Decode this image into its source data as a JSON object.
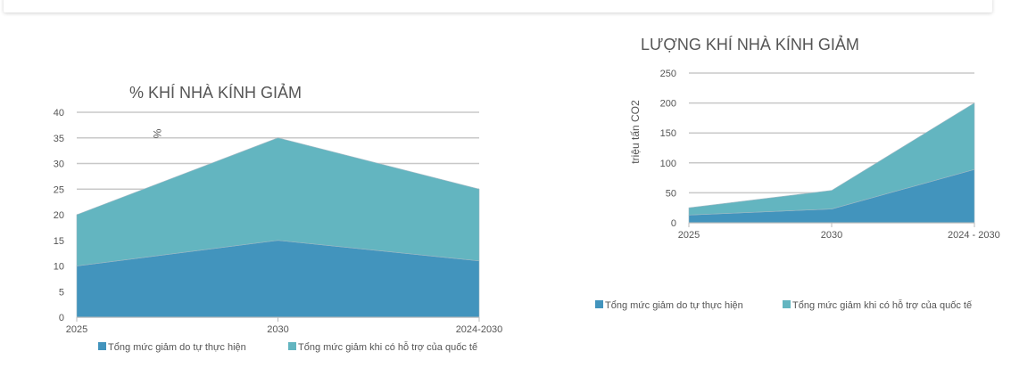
{
  "colors": {
    "series1": "#4294bd",
    "series2": "#63b5c0",
    "grid": "#c8c8c8"
  },
  "chart_data": [
    {
      "type": "area",
      "stacked": true,
      "title": "% KHÍ NHÀ KÍNH GIẢM",
      "ylabel": "%",
      "xlabel": "",
      "categories": [
        "2025",
        "2030",
        "2024-2030"
      ],
      "ylim": [
        0,
        40
      ],
      "yticks": [
        "0",
        "5",
        "10",
        "15",
        "20",
        "25",
        "30",
        "35",
        "40"
      ],
      "grid": true,
      "legend_position": "bottom",
      "series": [
        {
          "name": "Tổng mức giảm do tự thực hiện",
          "values": [
            10,
            15,
            11
          ]
        },
        {
          "name": "Tổng mức giảm khi có hỗ trợ của quốc tế",
          "values": [
            10,
            20,
            14
          ]
        }
      ]
    },
    {
      "type": "area",
      "stacked": true,
      "title": "LƯỢNG KHÍ NHÀ KÍNH GIẢM",
      "ylabel": "triệu tấn CO2",
      "xlabel": "",
      "categories": [
        "2025",
        "2030",
        "2024 - 2030"
      ],
      "ylim": [
        0,
        250
      ],
      "yticks": [
        "0",
        "50",
        "100",
        "150",
        "200",
        "250"
      ],
      "grid": true,
      "legend_position": "bottom",
      "series": [
        {
          "name": "Tổng mức giảm do tự thực hiện",
          "values": [
            13,
            23,
            89
          ]
        },
        {
          "name": "Tổng mức giảm khi có hỗ trợ của quốc tế",
          "values": [
            12,
            31,
            111
          ]
        }
      ]
    }
  ]
}
